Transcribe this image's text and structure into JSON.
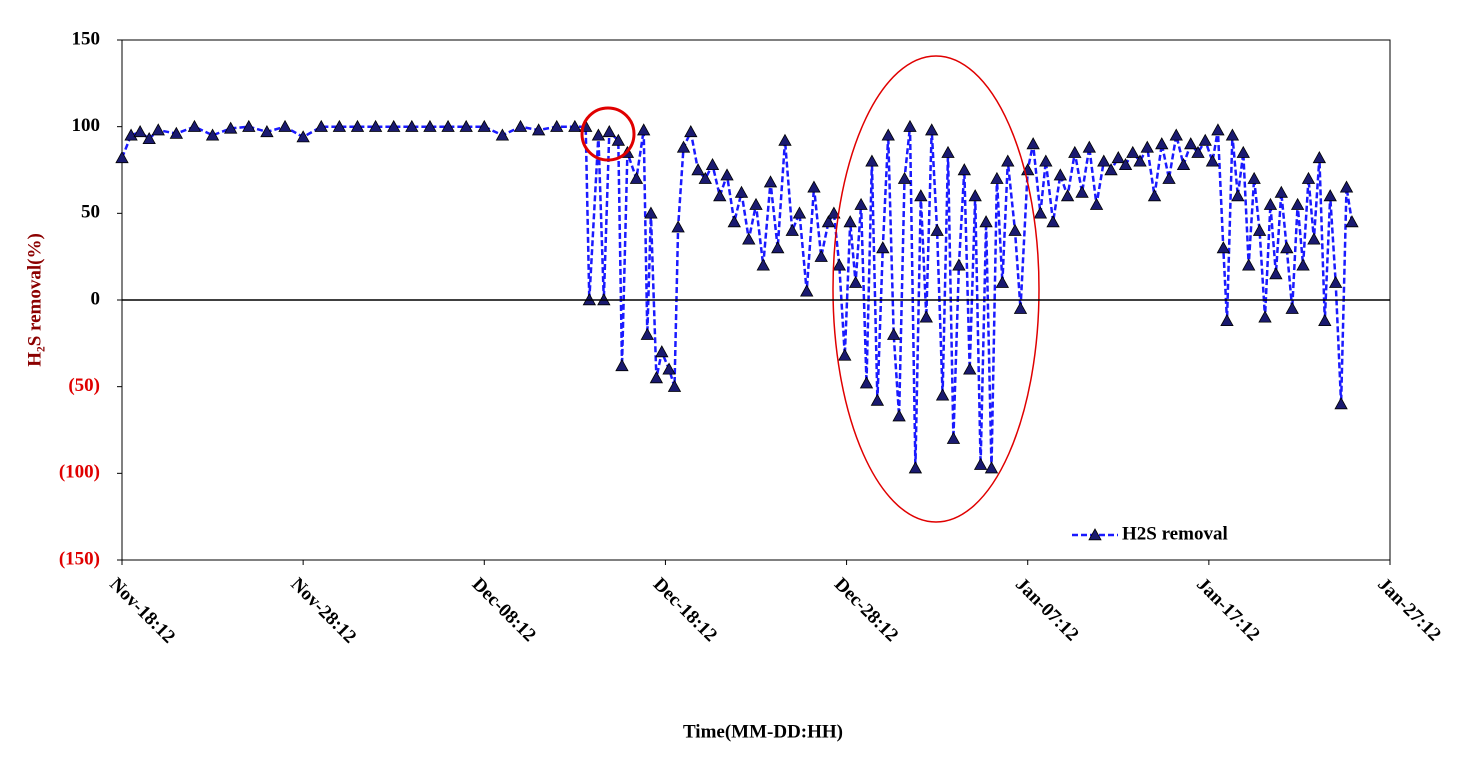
{
  "chart_data": {
    "type": "line",
    "y_label": "H₂S removal(%)",
    "x_label": "Time(MM-DD:HH)",
    "xlim": [
      0,
      70
    ],
    "xticks": [
      {
        "value": 0,
        "label": "Nov-18:12"
      },
      {
        "value": 10,
        "label": "Nov-28:12"
      },
      {
        "value": 20,
        "label": "Dec-08:12"
      },
      {
        "value": 30,
        "label": "Dec-18:12"
      },
      {
        "value": 40,
        "label": "Dec-28:12"
      },
      {
        "value": 50,
        "label": "Jan-07:12"
      },
      {
        "value": 60,
        "label": "Jan-17:12"
      },
      {
        "value": 70,
        "label": "Jan-27:12"
      }
    ],
    "ylim": [
      -150,
      150
    ],
    "yticks": [
      150,
      100,
      50,
      0,
      {
        "value": -50,
        "label": "(50)"
      },
      {
        "value": -100,
        "label": "(100)"
      },
      {
        "value": -150,
        "label": "(150)"
      }
    ],
    "negative_tick_color": "#e00000",
    "zero_line": true,
    "legend": "lower right",
    "series": [
      {
        "name": "H2S removal",
        "color": "#1a1aff",
        "marker_color": "#1a1a70",
        "x": [
          0,
          0.5,
          1,
          1.5,
          2,
          3,
          4,
          5,
          6,
          7,
          8,
          9,
          10,
          11,
          12,
          13,
          14,
          15,
          16,
          17,
          18,
          19,
          20,
          21,
          22,
          23,
          24,
          25,
          25.6,
          25.8,
          26.3,
          26.6,
          26.9,
          27.4,
          27.6,
          27.9,
          28.4,
          28.8,
          29.0,
          29.2,
          29.5,
          29.8,
          30.2,
          30.5,
          30.7,
          31.0,
          31.4,
          31.8,
          32.2,
          32.6,
          33.0,
          33.4,
          33.8,
          34.2,
          34.6,
          35.0,
          35.4,
          35.8,
          36.2,
          36.6,
          37.0,
          37.4,
          37.8,
          38.2,
          38.6,
          39.0,
          39.3,
          39.6,
          39.9,
          40.2,
          40.5,
          40.8,
          41.1,
          41.4,
          41.7,
          42.0,
          42.3,
          42.6,
          42.9,
          43.2,
          43.5,
          43.8,
          44.1,
          44.4,
          44.7,
          45.0,
          45.3,
          45.6,
          45.9,
          46.2,
          46.5,
          46.8,
          47.1,
          47.4,
          47.7,
          48.0,
          48.3,
          48.6,
          48.9,
          49.3,
          49.6,
          50.0,
          50.3,
          50.7,
          51.0,
          51.4,
          51.8,
          52.2,
          52.6,
          53.0,
          53.4,
          53.8,
          54.2,
          54.6,
          55.0,
          55.4,
          55.8,
          56.2,
          56.6,
          57.0,
          57.4,
          57.8,
          58.2,
          58.6,
          59.0,
          59.4,
          59.8,
          60.2,
          60.5,
          60.8,
          61.0,
          61.3,
          61.6,
          61.9,
          62.2,
          62.5,
          62.8,
          63.1,
          63.4,
          63.7,
          64.0,
          64.3,
          64.6,
          64.9,
          65.2,
          65.5,
          65.8,
          66.1,
          66.4,
          66.7,
          67.0,
          67.3,
          67.6,
          67.9
        ],
        "values": [
          82,
          95,
          97,
          93,
          98,
          96,
          100,
          95,
          99,
          100,
          97,
          100,
          94,
          100,
          100,
          100,
          100,
          100,
          100,
          100,
          100,
          100,
          100,
          95,
          100,
          98,
          100,
          100,
          100,
          0,
          95,
          0,
          97,
          92,
          -38,
          85,
          70,
          98,
          -20,
          50,
          -45,
          -30,
          -40,
          -50,
          42,
          88,
          97,
          75,
          70,
          78,
          60,
          72,
          45,
          62,
          35,
          55,
          20,
          68,
          30,
          92,
          40,
          50,
          5,
          65,
          25,
          45,
          50,
          20,
          -32,
          45,
          10,
          55,
          -48,
          80,
          -58,
          30,
          95,
          -20,
          -67,
          70,
          100,
          -97,
          60,
          -10,
          98,
          40,
          -55,
          85,
          -80,
          20,
          75,
          -40,
          60,
          -95,
          45,
          -97,
          70,
          10,
          80,
          40,
          -5,
          75,
          90,
          50,
          80,
          45,
          72,
          60,
          85,
          62,
          88,
          55,
          80,
          75,
          82,
          78,
          85,
          80,
          88,
          60,
          90,
          70,
          95,
          78,
          90,
          85,
          92,
          80,
          98,
          30,
          -12,
          95,
          60,
          85,
          20,
          70,
          40,
          -10,
          55,
          15,
          62,
          30,
          -5,
          55,
          20,
          70,
          35,
          82,
          -12,
          60,
          10,
          -60,
          65,
          45
        ]
      }
    ]
  }
}
